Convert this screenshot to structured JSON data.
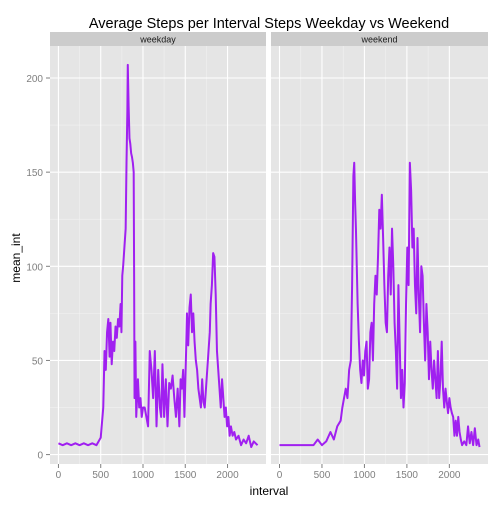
{
  "chart_data": {
    "type": "line",
    "title": "Average Steps per Interval Steps Weekday vs Weekend",
    "xlabel": "interval",
    "ylabel": "mean_int",
    "xlim": [
      -100,
      2455
    ],
    "ylim": [
      -5,
      217
    ],
    "x_ticks": [
      0,
      500,
      1000,
      1500,
      2000
    ],
    "x_tick_labels": [
      "0",
      "500",
      "1000",
      "1500",
      "2000"
    ],
    "y_ticks": [
      0,
      50,
      100,
      150,
      200
    ],
    "y_tick_labels": [
      "0",
      "50",
      "100",
      "150",
      "200"
    ],
    "grid": true,
    "line_color": "#a020f0",
    "panel_background": "#e5e5e5",
    "strip_background": "#cccccc",
    "panels": [
      {
        "label": "weekday",
        "points": [
          [
            0,
            6
          ],
          [
            50,
            5
          ],
          [
            100,
            6
          ],
          [
            150,
            5
          ],
          [
            200,
            6
          ],
          [
            250,
            5
          ],
          [
            300,
            6
          ],
          [
            350,
            5
          ],
          [
            400,
            6
          ],
          [
            450,
            5
          ],
          [
            500,
            9
          ],
          [
            530,
            25
          ],
          [
            545,
            55
          ],
          [
            560,
            45
          ],
          [
            575,
            65
          ],
          [
            590,
            72
          ],
          [
            605,
            52
          ],
          [
            615,
            70
          ],
          [
            630,
            48
          ],
          [
            645,
            60
          ],
          [
            660,
            55
          ],
          [
            675,
            68
          ],
          [
            690,
            62
          ],
          [
            705,
            72
          ],
          [
            720,
            68
          ],
          [
            735,
            80
          ],
          [
            745,
            65
          ],
          [
            755,
            95
          ],
          [
            765,
            100
          ],
          [
            780,
            110
          ],
          [
            795,
            120
          ],
          [
            805,
            155
          ],
          [
            815,
            182
          ],
          [
            820,
            207
          ],
          [
            830,
            185
          ],
          [
            840,
            168
          ],
          [
            850,
            165
          ],
          [
            860,
            160
          ],
          [
            870,
            158
          ],
          [
            880,
            155
          ],
          [
            890,
            150
          ],
          [
            895,
            95
          ],
          [
            900,
            30
          ],
          [
            910,
            60
          ],
          [
            920,
            20
          ],
          [
            930,
            30
          ],
          [
            940,
            40
          ],
          [
            955,
            25
          ],
          [
            970,
            30
          ],
          [
            985,
            20
          ],
          [
            1000,
            25
          ],
          [
            1020,
            25
          ],
          [
            1040,
            20
          ],
          [
            1060,
            15
          ],
          [
            1080,
            55
          ],
          [
            1100,
            45
          ],
          [
            1120,
            30
          ],
          [
            1140,
            55
          ],
          [
            1160,
            15
          ],
          [
            1180,
            45
          ],
          [
            1200,
            25
          ],
          [
            1215,
            20
          ],
          [
            1230,
            48
          ],
          [
            1250,
            20
          ],
          [
            1270,
            40
          ],
          [
            1290,
            15
          ],
          [
            1310,
            38
          ],
          [
            1330,
            35
          ],
          [
            1350,
            42
          ],
          [
            1370,
            30
          ],
          [
            1390,
            20
          ],
          [
            1410,
            35
          ],
          [
            1430,
            15
          ],
          [
            1445,
            40
          ],
          [
            1460,
            35
          ],
          [
            1475,
            45
          ],
          [
            1490,
            20
          ],
          [
            1510,
            55
          ],
          [
            1520,
            75
          ],
          [
            1535,
            58
          ],
          [
            1550,
            78
          ],
          [
            1565,
            85
          ],
          [
            1580,
            65
          ],
          [
            1595,
            75
          ],
          [
            1610,
            60
          ],
          [
            1625,
            50
          ],
          [
            1640,
            45
          ],
          [
            1655,
            35
          ],
          [
            1670,
            30
          ],
          [
            1685,
            25
          ],
          [
            1700,
            40
          ],
          [
            1715,
            28
          ],
          [
            1730,
            25
          ],
          [
            1745,
            35
          ],
          [
            1760,
            45
          ],
          [
            1775,
            55
          ],
          [
            1790,
            65
          ],
          [
            1800,
            80
          ],
          [
            1815,
            90
          ],
          [
            1830,
            107
          ],
          [
            1845,
            105
          ],
          [
            1860,
            85
          ],
          [
            1875,
            55
          ],
          [
            1890,
            45
          ],
          [
            1905,
            35
          ],
          [
            1920,
            25
          ],
          [
            1935,
            40
          ],
          [
            1950,
            30
          ],
          [
            1965,
            20
          ],
          [
            1980,
            25
          ],
          [
            1995,
            15
          ],
          [
            2010,
            20
          ],
          [
            2025,
            10
          ],
          [
            2040,
            15
          ],
          [
            2060,
            10
          ],
          [
            2080,
            12
          ],
          [
            2100,
            8
          ],
          [
            2130,
            10
          ],
          [
            2160,
            5
          ],
          [
            2190,
            8
          ],
          [
            2220,
            6
          ],
          [
            2250,
            10
          ],
          [
            2280,
            4
          ],
          [
            2310,
            7
          ],
          [
            2355,
            5
          ]
        ]
      },
      {
        "label": "weekend",
        "points": [
          [
            0,
            5
          ],
          [
            50,
            5
          ],
          [
            100,
            5
          ],
          [
            150,
            5
          ],
          [
            200,
            5
          ],
          [
            250,
            5
          ],
          [
            300,
            5
          ],
          [
            350,
            5
          ],
          [
            400,
            5
          ],
          [
            450,
            8
          ],
          [
            500,
            5
          ],
          [
            550,
            7
          ],
          [
            600,
            12
          ],
          [
            640,
            8
          ],
          [
            680,
            15
          ],
          [
            720,
            18
          ],
          [
            740,
            25
          ],
          [
            760,
            30
          ],
          [
            780,
            35
          ],
          [
            800,
            30
          ],
          [
            820,
            45
          ],
          [
            840,
            50
          ],
          [
            855,
            90
          ],
          [
            870,
            148
          ],
          [
            880,
            155
          ],
          [
            890,
            135
          ],
          [
            900,
            120
          ],
          [
            910,
            100
          ],
          [
            920,
            80
          ],
          [
            935,
            60
          ],
          [
            950,
            45
          ],
          [
            965,
            38
          ],
          [
            980,
            50
          ],
          [
            995,
            42
          ],
          [
            1010,
            55
          ],
          [
            1025,
            60
          ],
          [
            1040,
            35
          ],
          [
            1055,
            40
          ],
          [
            1070,
            65
          ],
          [
            1085,
            70
          ],
          [
            1100,
            50
          ],
          [
            1115,
            80
          ],
          [
            1130,
            95
          ],
          [
            1145,
            85
          ],
          [
            1160,
            105
          ],
          [
            1175,
            130
          ],
          [
            1190,
            120
          ],
          [
            1205,
            138
          ],
          [
            1220,
            115
          ],
          [
            1235,
            90
          ],
          [
            1250,
            70
          ],
          [
            1265,
            65
          ],
          [
            1280,
            95
          ],
          [
            1295,
            110
          ],
          [
            1310,
            85
          ],
          [
            1325,
            120
          ],
          [
            1340,
            100
          ],
          [
            1355,
            70
          ],
          [
            1370,
            55
          ],
          [
            1385,
            35
          ],
          [
            1400,
            90
          ],
          [
            1415,
            60
          ],
          [
            1430,
            30
          ],
          [
            1445,
            45
          ],
          [
            1460,
            25
          ],
          [
            1475,
            38
          ],
          [
            1490,
            80
          ],
          [
            1505,
            110
          ],
          [
            1520,
            90
          ],
          [
            1535,
            155
          ],
          [
            1550,
            140
          ],
          [
            1565,
            110
          ],
          [
            1580,
            120
          ],
          [
            1595,
            90
          ],
          [
            1610,
            75
          ],
          [
            1625,
            115
          ],
          [
            1640,
            85
          ],
          [
            1655,
            65
          ],
          [
            1670,
            100
          ],
          [
            1685,
            95
          ],
          [
            1700,
            70
          ],
          [
            1715,
            50
          ],
          [
            1730,
            80
          ],
          [
            1745,
            65
          ],
          [
            1760,
            40
          ],
          [
            1775,
            60
          ],
          [
            1790,
            45
          ],
          [
            1805,
            35
          ],
          [
            1820,
            50
          ],
          [
            1835,
            40
          ],
          [
            1850,
            30
          ],
          [
            1865,
            55
          ],
          [
            1880,
            30
          ],
          [
            1895,
            40
          ],
          [
            1910,
            60
          ],
          [
            1925,
            35
          ],
          [
            1940,
            25
          ],
          [
            1955,
            35
          ],
          [
            1970,
            28
          ],
          [
            1985,
            22
          ],
          [
            2000,
            30
          ],
          [
            2015,
            25
          ],
          [
            2030,
            22
          ],
          [
            2045,
            20
          ],
          [
            2060,
            10
          ],
          [
            2075,
            18
          ],
          [
            2090,
            10
          ],
          [
            2105,
            20
          ],
          [
            2120,
            12
          ],
          [
            2135,
            8
          ],
          [
            2150,
            5
          ],
          [
            2175,
            7
          ],
          [
            2200,
            5
          ],
          [
            2220,
            15
          ],
          [
            2240,
            6
          ],
          [
            2260,
            12
          ],
          [
            2280,
            5
          ],
          [
            2300,
            14
          ],
          [
            2320,
            5
          ],
          [
            2340,
            8
          ],
          [
            2355,
            4
          ]
        ]
      }
    ]
  }
}
